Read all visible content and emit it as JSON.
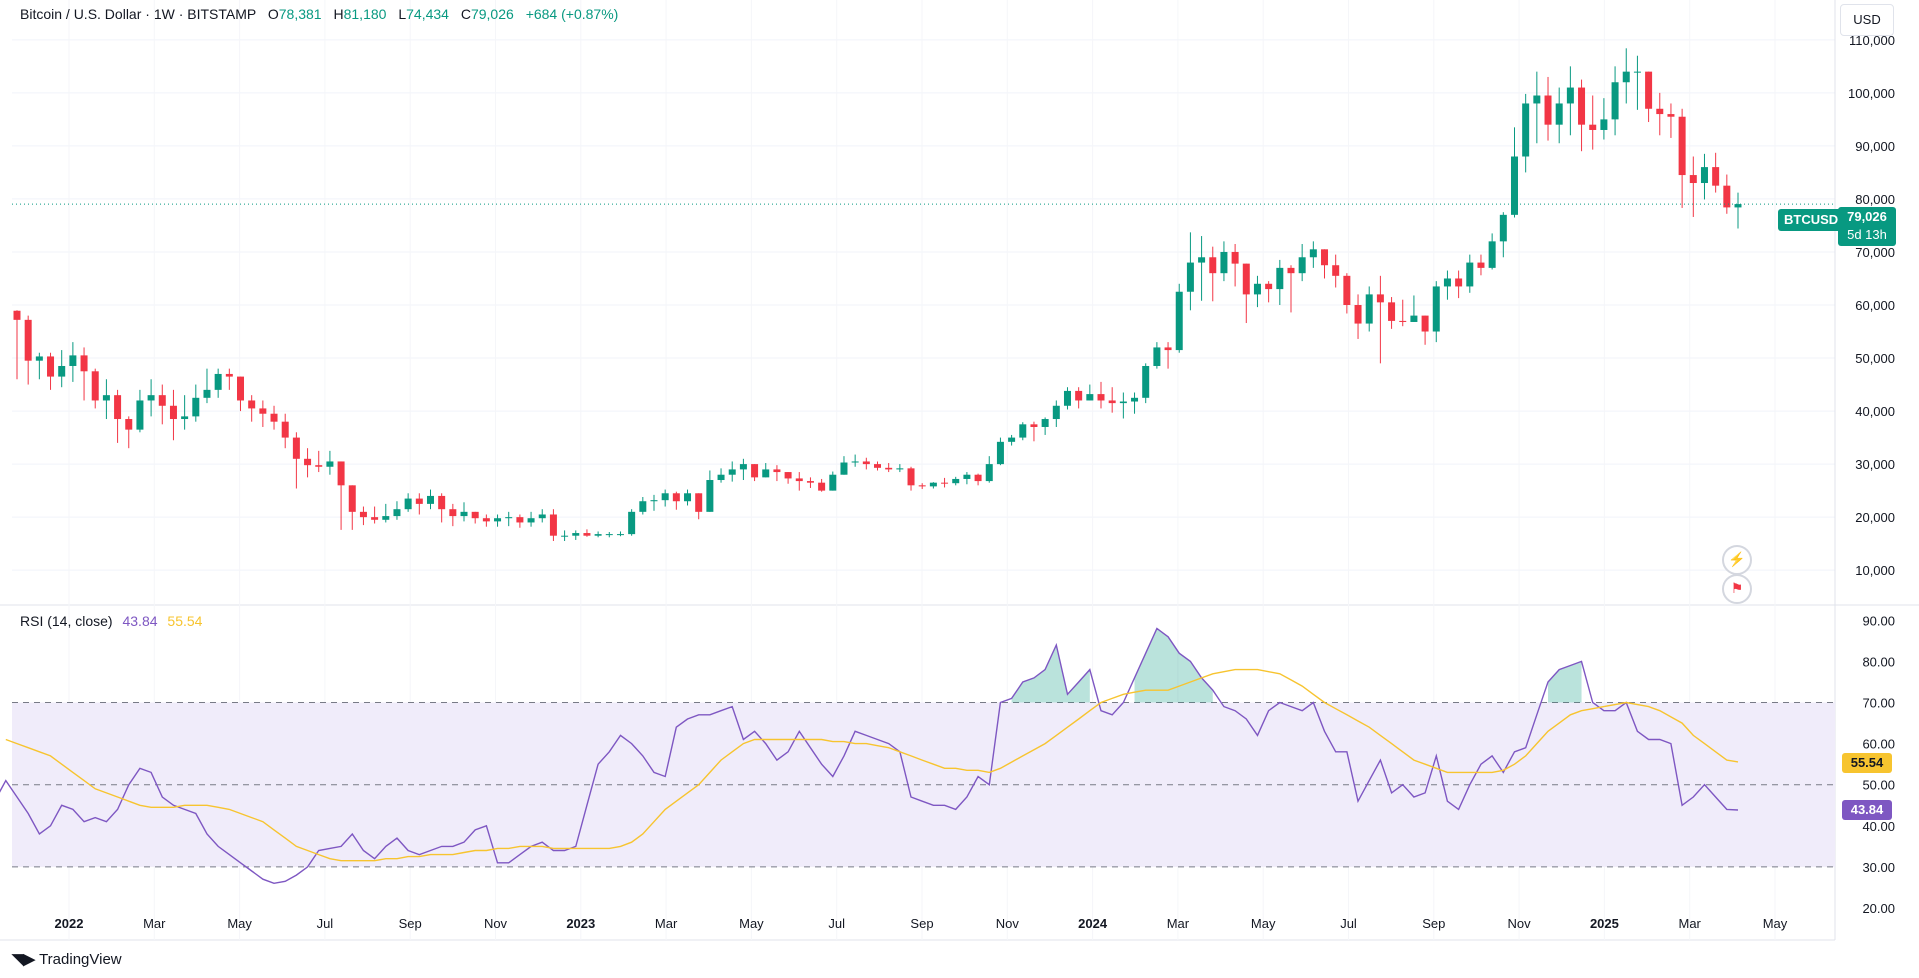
{
  "header": {
    "symbol": "Bitcoin / U.S. Dollar · 1W · BITSTAMP",
    "o_label": "O",
    "o": "78,381",
    "h_label": "H",
    "h": "81,180",
    "l_label": "L",
    "l": "74,434",
    "c_label": "C",
    "c": "79,026",
    "change": "+684 (+0.87%)"
  },
  "currency_button": "USD",
  "price_badge": {
    "symbol": "BTCUSD",
    "price": "79,026",
    "countdown": "5d 13h"
  },
  "rsi_header": {
    "label": "RSI (14, close)",
    "rsi_value": "43.84",
    "ma_value": "55.54"
  },
  "rsi_badges": {
    "ma": "55.54",
    "rsi": "43.84"
  },
  "brand": "TradingView",
  "colors": {
    "up": "#089981",
    "down": "#f23645",
    "rsi": "#7e57c2",
    "rsi_ma": "#f7c42f",
    "band": "#f0ecfa"
  },
  "chart_data": [
    {
      "type": "candlestick",
      "title": "Bitcoin / U.S. Dollar · 1W · BITSTAMP",
      "interval": "1W",
      "y_scale": "linear",
      "ylim": [
        4000,
        116000
      ],
      "yticks": [
        10000,
        20000,
        30000,
        40000,
        50000,
        60000,
        70000,
        80000,
        90000,
        100000,
        110000
      ],
      "ytick_labels": [
        "10,000",
        "20,000",
        "30,000",
        "40,000",
        "50,000",
        "60,000",
        "70,000",
        "80,000",
        "90,000",
        "100,000",
        "110,000"
      ],
      "x_axis_labels": [
        "2022",
        "Mar",
        "May",
        "Jul",
        "Sep",
        "Nov",
        "2023",
        "Mar",
        "May",
        "Jul",
        "Sep",
        "Nov",
        "2024",
        "Mar",
        "May",
        "Jul",
        "Sep",
        "Nov",
        "2025",
        "Mar",
        "May"
      ],
      "last_price": 79026,
      "closes": [
        57200,
        49500,
        50300,
        46500,
        48500,
        50500,
        47500,
        42000,
        43000,
        38500,
        36500,
        42000,
        43000,
        41000,
        38500,
        39000,
        42500,
        44000,
        47000,
        46500,
        42000,
        40500,
        39500,
        38000,
        35000,
        31000,
        29800,
        29500,
        30500,
        26000,
        21000,
        20000,
        19500,
        20200,
        21500,
        23500,
        22500,
        24000,
        21500,
        20200,
        21000,
        19800,
        19200,
        19800,
        20000,
        19000,
        19800,
        20500,
        16500,
        16500,
        17000,
        16500,
        16800,
        16800,
        16800,
        21000,
        23000,
        23200,
        24500,
        23000,
        24500,
        21000,
        27000,
        28000,
        29000,
        30000,
        27500,
        29000,
        28500,
        27300,
        26800,
        26500,
        25000,
        28000,
        30300,
        30500,
        30000,
        29300,
        29000,
        29200,
        26000,
        25800,
        26500,
        26400,
        27200,
        28000,
        26800,
        30000,
        34200,
        35000,
        37500,
        37000,
        38500,
        41000,
        43800,
        42000,
        43200,
        42000,
        41500,
        41800,
        42500,
        48500,
        52000,
        51500,
        62500,
        68000,
        69000,
        66000,
        70000,
        67800,
        62000,
        64000,
        63000,
        67000,
        66000,
        69000,
        70500,
        67500,
        65500,
        60000,
        56500,
        62000,
        60500,
        57000,
        56800,
        58000,
        55000,
        63500,
        65000,
        63500,
        68000,
        67000,
        72000,
        77000,
        88000,
        98000,
        99500,
        94000,
        98000,
        101000,
        94000,
        93000,
        95000,
        102000,
        104000,
        104000,
        97000,
        96000,
        95500,
        84500,
        83000,
        86000,
        82500,
        78400,
        79026
      ],
      "highs": [
        59000,
        58000,
        51000,
        51000,
        51500,
        53000,
        52000,
        48000,
        46000,
        44000,
        39000,
        44000,
        46000,
        45000,
        44000,
        43000,
        45000,
        48000,
        48000,
        48000,
        46000,
        43000,
        42000,
        41000,
        39500,
        36000,
        33000,
        32500,
        32500,
        30000,
        25500,
        22000,
        22000,
        22500,
        23000,
        24500,
        24500,
        25200,
        24500,
        22500,
        22800,
        21000,
        20500,
        20500,
        21000,
        20500,
        21000,
        21500,
        21500,
        17500,
        17500,
        17700,
        17300,
        17200,
        17300,
        21500,
        23800,
        24200,
        25200,
        24800,
        25200,
        24500,
        28800,
        29200,
        30500,
        31000,
        30000,
        30200,
        29800,
        28500,
        28500,
        27500,
        27200,
        28600,
        31500,
        31800,
        31200,
        30500,
        30200,
        30000,
        29500,
        26400,
        26600,
        27400,
        27600,
        28500,
        28200,
        31500,
        35000,
        35500,
        37900,
        38000,
        38800,
        42000,
        44500,
        44500,
        45000,
        45500,
        44500,
        43500,
        43500,
        49000,
        53000,
        53000,
        64000,
        73700,
        73000,
        71000,
        72000,
        71500,
        67000,
        65500,
        64500,
        68500,
        67500,
        71500,
        72000,
        70000,
        69500,
        66000,
        62000,
        63500,
        65500,
        61500,
        61000,
        61800,
        58000,
        64500,
        66500,
        66500,
        69500,
        69500,
        73500,
        77500,
        93500,
        99800,
        104000,
        103000,
        101000,
        105000,
        102500,
        99500,
        99000,
        105000,
        108400,
        107000,
        102500,
        100000,
        98000,
        97000,
        88000,
        88500,
        88700,
        84600,
        81180
      ],
      "lows": [
        46000,
        45000,
        46000,
        44000,
        44500,
        45500,
        42000,
        40500,
        38500,
        34000,
        33000,
        36000,
        39000,
        37500,
        34500,
        36500,
        38000,
        41500,
        42500,
        44000,
        40000,
        38000,
        37000,
        36500,
        33000,
        25400,
        27500,
        28500,
        28000,
        17600,
        17600,
        18500,
        18800,
        19000,
        19500,
        21000,
        20500,
        21500,
        19000,
        18300,
        19200,
        18800,
        18200,
        18200,
        18300,
        18000,
        18200,
        19000,
        15500,
        15500,
        15700,
        16300,
        16200,
        16200,
        16400,
        16500,
        20500,
        21200,
        22000,
        21400,
        22200,
        19600,
        21300,
        26500,
        26700,
        27000,
        26800,
        27500,
        26800,
        26300,
        25000,
        25500,
        24800,
        25000,
        28000,
        29500,
        29000,
        28800,
        28500,
        28500,
        25000,
        25300,
        25400,
        25600,
        26000,
        26200,
        26000,
        26500,
        29800,
        33500,
        34500,
        34300,
        35500,
        37000,
        40300,
        40500,
        42000,
        40500,
        39700,
        38600,
        39500,
        41500,
        48000,
        48000,
        51000,
        59000,
        60800,
        60700,
        64500,
        63500,
        56600,
        59600,
        60500,
        60000,
        58600,
        64500,
        67000,
        65000,
        63300,
        58400,
        53600,
        55000,
        49000,
        55500,
        56000,
        57000,
        52500,
        53000,
        61000,
        61300,
        62300,
        65600,
        66700,
        69000,
        76500,
        85000,
        90500,
        91000,
        90500,
        92000,
        89000,
        89300,
        91200,
        92000,
        98000,
        96800,
        94500,
        92000,
        91500,
        78300,
        76600,
        79900,
        81200,
        77200,
        74434
      ]
    },
    {
      "type": "line",
      "title": "RSI (14, close)",
      "ylim": [
        20,
        93
      ],
      "yticks": [
        20,
        30,
        40,
        50,
        60,
        70,
        80,
        90
      ],
      "ytick_labels": [
        "20.00",
        "30.00",
        "40.00",
        "50.00",
        "60.00",
        "70.00",
        "80.00",
        "90.00"
      ],
      "bands": {
        "upper": 70,
        "middle": 50,
        "lower": 30
      },
      "series": [
        {
          "name": "RSI",
          "color": "#7e57c2",
          "values": [
            56,
            48,
            49,
            46,
            51,
            47,
            43,
            38,
            40,
            45,
            44,
            41,
            42,
            41,
            44,
            50,
            54,
            53,
            47,
            45,
            44,
            43,
            38,
            35,
            33,
            31,
            29,
            27,
            26,
            26.5,
            28,
            30,
            34,
            34.5,
            35,
            38,
            34,
            32,
            35,
            37,
            34,
            33,
            34,
            35,
            35,
            36,
            39,
            40,
            31,
            31,
            33,
            35,
            36,
            34,
            34,
            35,
            45,
            55,
            58,
            62,
            60,
            57,
            53,
            52,
            64,
            66,
            67,
            67,
            68,
            69,
            61,
            63,
            60,
            56,
            58,
            63,
            59,
            55,
            52,
            57,
            63,
            62,
            61,
            60,
            58,
            47,
            46,
            45,
            45,
            44,
            47,
            52,
            50,
            70,
            71,
            75,
            76,
            78,
            84,
            72,
            75,
            78,
            68,
            67,
            70,
            76,
            82,
            88,
            86,
            82,
            80,
            76,
            73,
            69,
            68,
            66,
            62,
            68,
            70,
            69,
            68,
            70,
            63,
            58,
            58,
            46,
            51,
            56,
            48,
            50,
            47,
            48,
            57,
            46,
            44,
            50,
            55,
            57,
            53,
            58,
            59,
            67,
            75,
            78,
            79,
            80,
            70,
            68,
            68,
            70,
            63,
            61,
            61,
            60,
            45,
            47,
            50,
            47,
            44,
            43.84
          ]
        },
        {
          "name": "MA",
          "color": "#f7c42f",
          "values": [
            61,
            60,
            59,
            58,
            57,
            55,
            53,
            51,
            49,
            48,
            47,
            46,
            45,
            44.5,
            44.5,
            44.5,
            45,
            45,
            45,
            44.5,
            44,
            43,
            42,
            41,
            39,
            37,
            35,
            34,
            33,
            32,
            31.5,
            31.5,
            31.5,
            31.5,
            32,
            32,
            32.5,
            32.5,
            33,
            33,
            33,
            33.5,
            34,
            34,
            34.5,
            34.5,
            35,
            35,
            35,
            34.5,
            34.5,
            34.5,
            34.5,
            34.5,
            34.5,
            35,
            36,
            38,
            41,
            44,
            46,
            48,
            50,
            53,
            56,
            58,
            60,
            61,
            61,
            61,
            61,
            61,
            61,
            61,
            60.5,
            60.5,
            60,
            60,
            59.5,
            59,
            58,
            57,
            56,
            55,
            54,
            54,
            53.5,
            53.5,
            53,
            54,
            55.5,
            57,
            58.5,
            60,
            62,
            64,
            66,
            68,
            70,
            71,
            72,
            72.5,
            73,
            73,
            73,
            74,
            75,
            76,
            77,
            77.5,
            78,
            78,
            78,
            77.5,
            77,
            75.5,
            74,
            72,
            70,
            68.5,
            67,
            65.5,
            64,
            62,
            60,
            58,
            56,
            55,
            54,
            53,
            53,
            53,
            53,
            53,
            53.5,
            55,
            57,
            60,
            63,
            65,
            67,
            68,
            68.5,
            69,
            69.5,
            70,
            69.5,
            69,
            68,
            66.5,
            65,
            62,
            60,
            58,
            56,
            55.54
          ]
        }
      ]
    }
  ]
}
